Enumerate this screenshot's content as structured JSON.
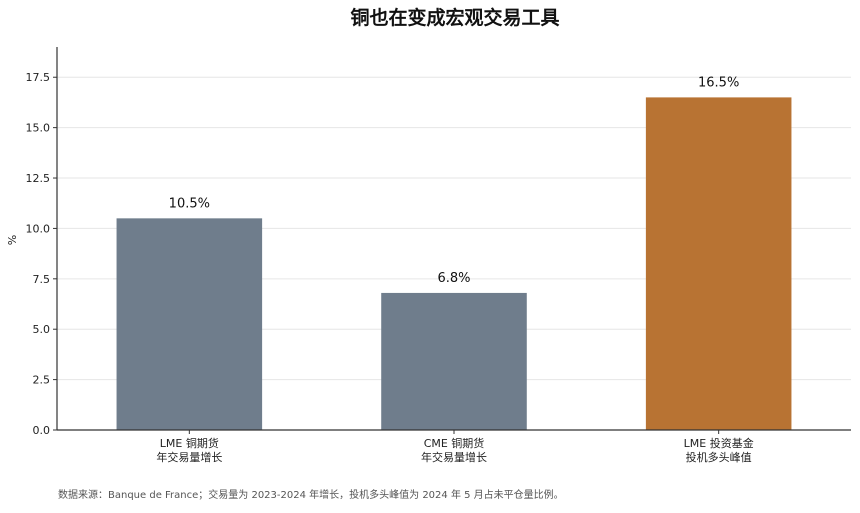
{
  "chart_data": {
    "type": "bar",
    "title": "铜也在变成宏观交易工具",
    "ylabel": "%",
    "xlabel": "",
    "ylim": [
      0,
      19
    ],
    "yticks": [
      0.0,
      2.5,
      5.0,
      7.5,
      10.0,
      12.5,
      15.0,
      17.5
    ],
    "ytick_labels": [
      "0.0",
      "2.5",
      "5.0",
      "7.5",
      "10.0",
      "12.5",
      "15.0",
      "17.5"
    ],
    "grid": true,
    "categories": [
      [
        "LME 铜期货",
        "年交易量增长"
      ],
      [
        "CME 铜期货",
        "年交易量增长"
      ],
      [
        "LME 投资基金",
        "投机多头峰值"
      ]
    ],
    "values": [
      10.5,
      6.8,
      16.5
    ],
    "value_labels": [
      "10.5%",
      "6.8%",
      "16.5%"
    ],
    "colors": [
      "#6f7d8c",
      "#6f7d8c",
      "#b87333"
    ]
  },
  "footnote": "数据来源：Banque de France；交易量为 2023-2024 年增长，投机多头峰值为 2024 年 5 月占未平仓量比例。"
}
